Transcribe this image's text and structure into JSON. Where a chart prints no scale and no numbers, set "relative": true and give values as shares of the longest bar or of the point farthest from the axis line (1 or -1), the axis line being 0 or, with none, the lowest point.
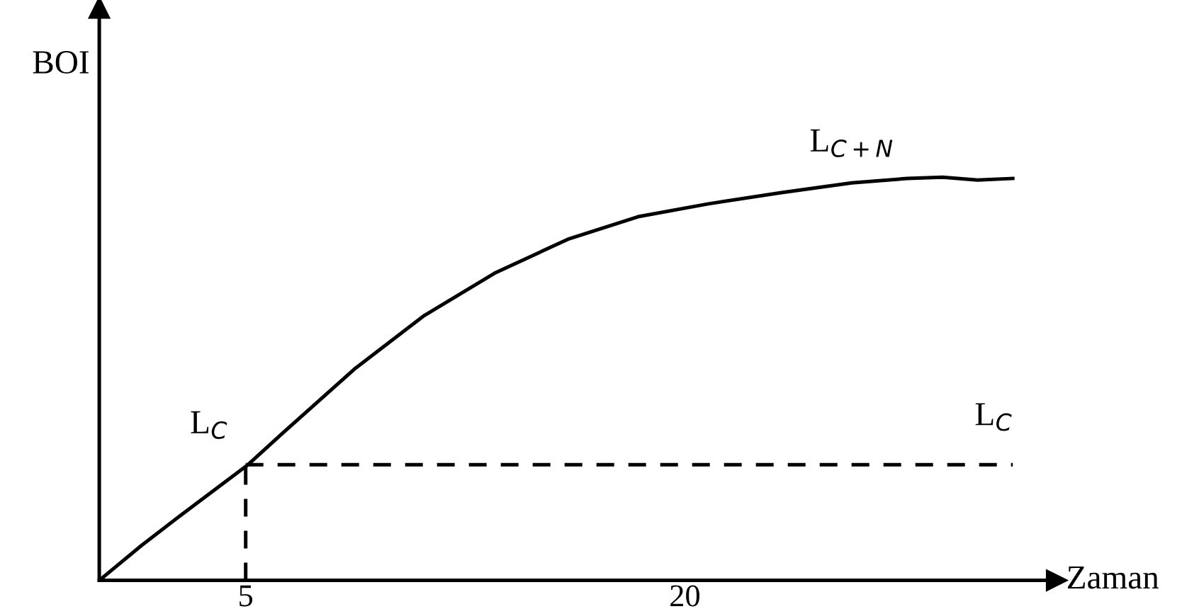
{
  "chart_data": {
    "type": "line",
    "relative": true,
    "xlabel": "Zaman",
    "ylabel": "BOI",
    "xlim": [
      0,
      32.7
    ],
    "xticks": [
      5,
      20
    ],
    "grid": false,
    "legend": false,
    "tick_labels": "x",
    "marker": "none",
    "series": [
      {
        "name": "L$_{C+N}$",
        "color": "#000000",
        "line_style": "solid",
        "x": [
          0,
          1.45,
          2.9,
          5.08,
          6.29,
          8.71,
          11.1,
          13.5,
          16.0,
          18.4,
          20.8,
          23.3,
          25.7,
          27.6,
          28.8,
          30.0,
          31.2
        ],
        "values": [
          0,
          0.087,
          0.168,
          0.287,
          0.367,
          0.524,
          0.657,
          0.762,
          0.846,
          0.902,
          0.934,
          0.962,
          0.986,
          0.997,
          1.0,
          0.993,
          0.997
        ]
      },
      {
        "name": "L$_{C}$",
        "color": "#000000",
        "line_style": "dashed",
        "x": [
          5,
          31.2
        ],
        "values": [
          0.287,
          0.287
        ]
      },
      {
        "color": "#000000",
        "line_style": "dashed",
        "x": [
          5,
          5
        ],
        "values": [
          0,
          0.287
        ]
      }
    ],
    "annotations": [
      {
        "text": "L$_{C}$",
        "x": 5,
        "y": 0.287
      }
    ]
  }
}
